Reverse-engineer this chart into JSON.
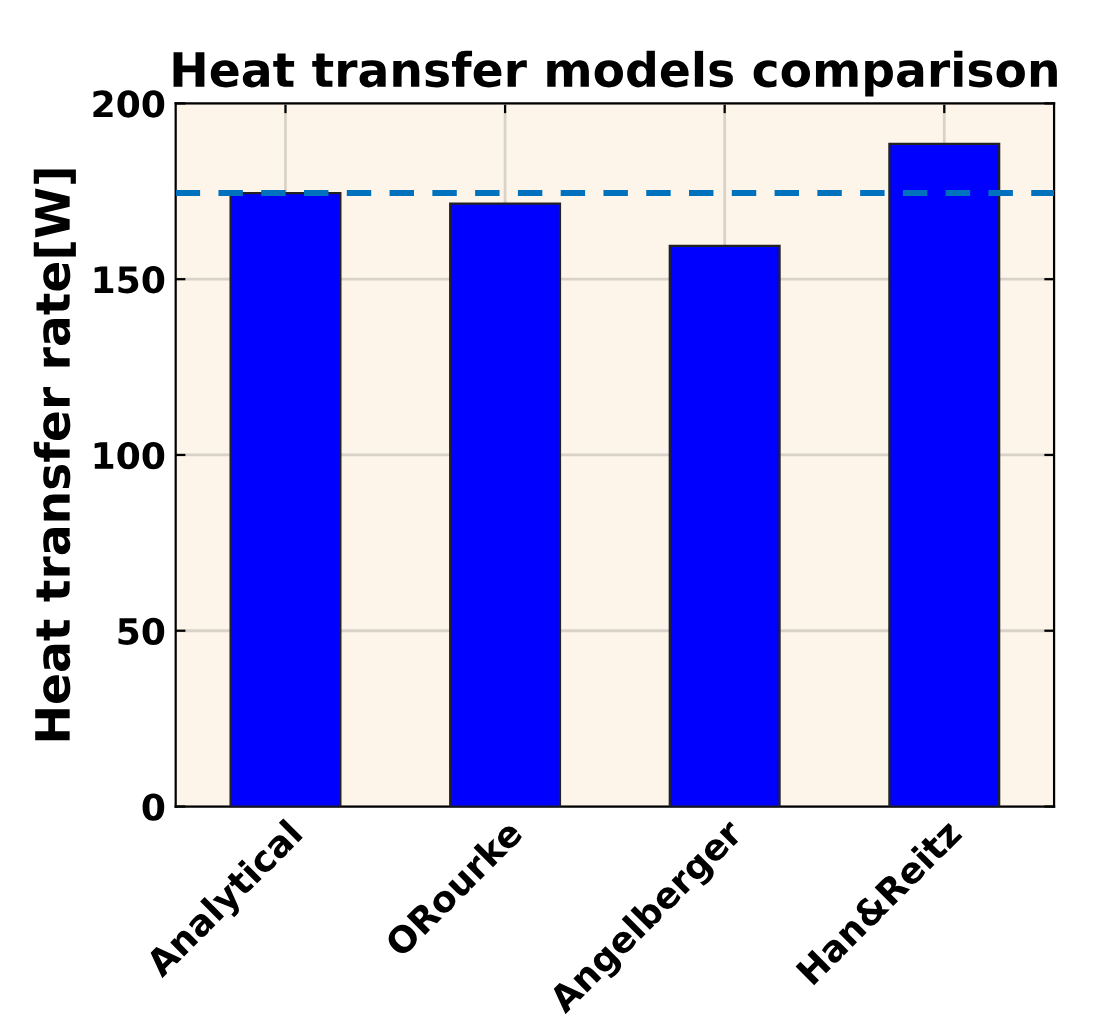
{
  "chart_data": {
    "type": "bar",
    "title": "Heat transfer models comparison",
    "ylabel": "Heat transfer rate[W]",
    "categories": [
      "Analytical",
      "ORourke",
      "Angelberger",
      "Han&Reitz"
    ],
    "values": [
      174.5,
      171.5,
      159.5,
      188.5
    ],
    "color": "#0000ff",
    "ylim": [
      0,
      200
    ],
    "yticks": [
      0,
      50,
      100,
      150,
      200
    ],
    "grid": true,
    "ref_lines": [
      {
        "axis": "y",
        "value": 174.5,
        "color": "#0072bd",
        "line_style": "dashed"
      }
    ]
  }
}
